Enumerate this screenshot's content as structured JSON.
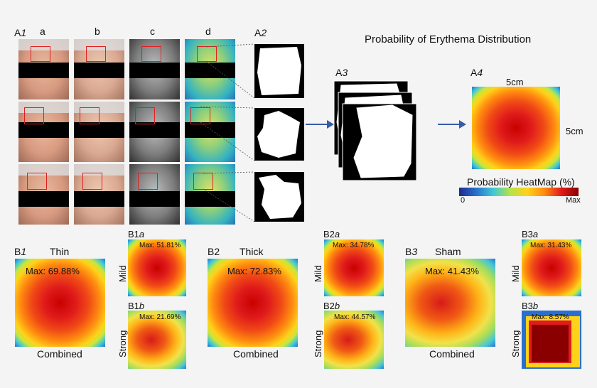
{
  "figure_title": "Probability of Erythema Distribution",
  "panel_a": {
    "a1_label": "A",
    "a1_num": "1",
    "columns": [
      "a",
      "b",
      "c",
      "d"
    ],
    "a2_label": "A",
    "a2_num": "2",
    "a3_label": "A",
    "a3_num": "3",
    "a4_label": "A",
    "a4_num": "4",
    "dim_top": "5cm",
    "dim_right": "5cm",
    "colorbar_title": "Probability HeatMap (%)",
    "colorbar_min": "0",
    "colorbar_max": "Max"
  },
  "panel_b": {
    "groups": [
      {
        "label": "B",
        "num": "1",
        "title": "Thin",
        "combined_max": "Max: 69.88%",
        "combined_label": "Combined",
        "sub_a_label": "B1",
        "sub_a_letter": "a",
        "sub_a_max": "Max: 51.81%",
        "sub_a_side": "Mild",
        "sub_b_label": "B1",
        "sub_b_letter": "b",
        "sub_b_max": "Max: 21.69%",
        "sub_b_side": "Strong"
      },
      {
        "label": "B2",
        "num": "",
        "title": "Thick",
        "combined_max": "Max: 72.83%",
        "combined_label": "Combined",
        "sub_a_label": "B2",
        "sub_a_letter": "a",
        "sub_a_max": "Max: 34.78%",
        "sub_a_side": "Mild",
        "sub_b_label": "B2",
        "sub_b_letter": "b",
        "sub_b_max": "Max: 44.57%",
        "sub_b_side": "Strong"
      },
      {
        "label": "B",
        "num": "3",
        "title": "Sham",
        "combined_max": "Max: 41.43%",
        "combined_label": "Combined",
        "sub_a_label": "B3",
        "sub_a_letter": "a",
        "sub_a_max": "Max: 31.43%",
        "sub_a_side": "Mild",
        "sub_b_label": "B3",
        "sub_b_letter": "b",
        "sub_b_max": "Max: 8.57%",
        "sub_b_side": "Strong"
      }
    ]
  },
  "colors": {
    "arrow": "#3a5aa8",
    "roi_box": "#e02020",
    "heat_high": "#c80000",
    "heat_low": "#2a6fd0"
  },
  "icons": [
    "arrow-right-icon",
    "arrow-right-icon"
  ]
}
